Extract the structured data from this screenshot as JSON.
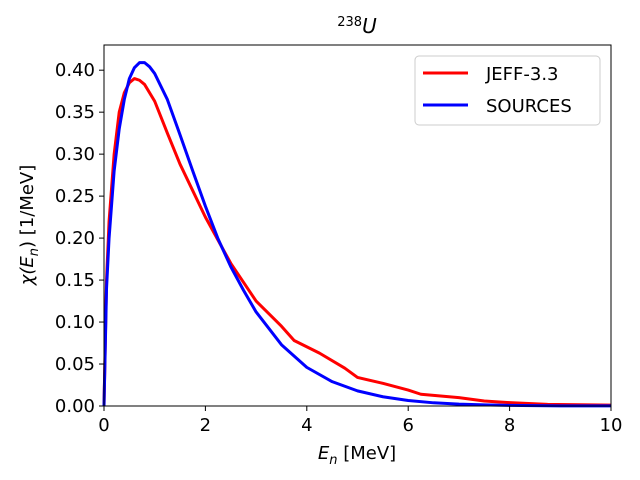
{
  "chart_data": {
    "type": "line",
    "title": {
      "prefix": "238",
      "main": "U"
    },
    "xlabel": {
      "symbol": "E",
      "subscript": "n",
      "unit": " [MeV]"
    },
    "ylabel": {
      "chi": "χ(",
      "symbol": "E",
      "subscript": "n",
      "rest": ") [1/MeV]"
    },
    "xlim": [
      0,
      10
    ],
    "ylim": [
      0,
      0.43
    ],
    "xticks": [
      0,
      2,
      4,
      6,
      8,
      10
    ],
    "xtick_labels": [
      "0",
      "2",
      "4",
      "6",
      "8",
      "10"
    ],
    "yticks": [
      0.0,
      0.05,
      0.1,
      0.15,
      0.2,
      0.25,
      0.3,
      0.35,
      0.4
    ],
    "ytick_labels": [
      "0.00",
      "0.05",
      "0.10",
      "0.15",
      "0.20",
      "0.25",
      "0.30",
      "0.35",
      "0.40"
    ],
    "grid": false,
    "legend_position": "top-right",
    "series": [
      {
        "name": "JEFF-3.3",
        "color": "#ff0000",
        "x": [
          0.0,
          0.05,
          0.1,
          0.2,
          0.3,
          0.4,
          0.5,
          0.6,
          0.7,
          0.8,
          1.0,
          1.25,
          1.5,
          2.0,
          2.5,
          3.0,
          3.5,
          3.75,
          4.25,
          4.75,
          5.0,
          5.5,
          6.0,
          6.25,
          7.0,
          7.5,
          8.0,
          8.75,
          10.0
        ],
        "y": [
          0.0,
          0.15,
          0.22,
          0.3,
          0.35,
          0.373,
          0.385,
          0.39,
          0.388,
          0.383,
          0.363,
          0.325,
          0.288,
          0.225,
          0.17,
          0.125,
          0.095,
          0.078,
          0.063,
          0.045,
          0.034,
          0.027,
          0.019,
          0.014,
          0.01,
          0.006,
          0.004,
          0.002,
          0.001
        ]
      },
      {
        "name": "SOURCES",
        "color": "#0000ff",
        "x": [
          0.0,
          0.05,
          0.1,
          0.2,
          0.3,
          0.4,
          0.5,
          0.6,
          0.7,
          0.8,
          0.9,
          1.0,
          1.25,
          1.5,
          1.75,
          2.0,
          2.25,
          2.5,
          2.75,
          3.0,
          3.5,
          4.0,
          4.5,
          5.0,
          5.5,
          6.0,
          6.5,
          7.0,
          7.5,
          8.0,
          8.5,
          9.0,
          10.0
        ],
        "y": [
          0.0,
          0.14,
          0.2,
          0.28,
          0.33,
          0.365,
          0.39,
          0.403,
          0.409,
          0.409,
          0.404,
          0.396,
          0.365,
          0.323,
          0.28,
          0.238,
          0.199,
          0.166,
          0.138,
          0.112,
          0.073,
          0.046,
          0.029,
          0.018,
          0.011,
          0.0065,
          0.0038,
          0.0022,
          0.0013,
          0.0007,
          0.0004,
          0.0002,
          0.0001
        ]
      }
    ]
  }
}
